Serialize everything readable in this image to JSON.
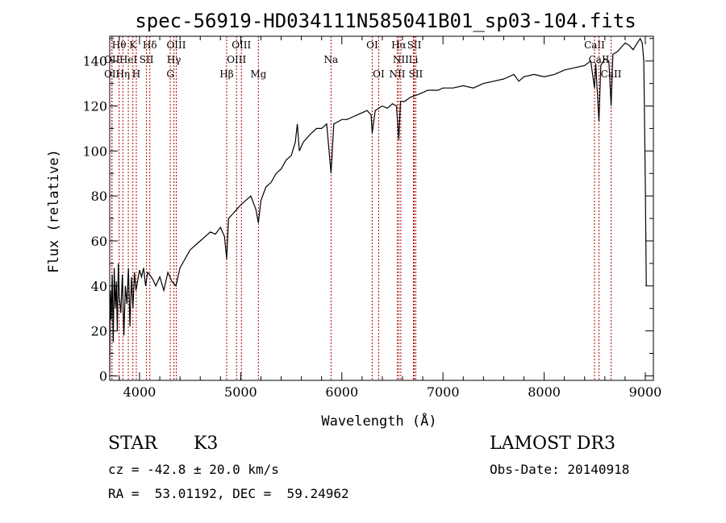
{
  "chart_data": {
    "type": "line",
    "title": "spec-56919-HD034111N585041B01_sp03-104.fits",
    "xlabel": "Wavelength (Å)",
    "ylabel": "Flux (relative)",
    "xlim": [
      3705,
      9080
    ],
    "ylim": [
      -2,
      151
    ],
    "xticks": [
      4000,
      5000,
      6000,
      7000,
      8000,
      9000
    ],
    "yticks": [
      0,
      20,
      40,
      60,
      80,
      100,
      120,
      140
    ],
    "line_color": "#000000",
    "marker_color": "#b00000",
    "lines": [
      {
        "label": "OII",
        "wl": 3727,
        "row": 3
      },
      {
        "label": "Hθ",
        "wl": 3798,
        "row": 1
      },
      {
        "label": "OII",
        "wl": 3727,
        "row": 2
      },
      {
        "label": "Hη",
        "wl": 3835,
        "row": 3
      },
      {
        "label": "HeI",
        "wl": 3889,
        "row": 2
      },
      {
        "label": "K",
        "wl": 3934,
        "row": 1
      },
      {
        "label": "H",
        "wl": 3968,
        "row": 3
      },
      {
        "label": "SII",
        "wl": 4069,
        "row": 2
      },
      {
        "label": "Hδ",
        "wl": 4102,
        "row": 1
      },
      {
        "label": "G",
        "wl": 4304,
        "row": 3
      },
      {
        "label": "Hγ",
        "wl": 4340,
        "row": 2
      },
      {
        "label": "OIII",
        "wl": 4363,
        "row": 1
      },
      {
        "label": "Hβ",
        "wl": 4861,
        "row": 3
      },
      {
        "label": "OIII",
        "wl": 4959,
        "row": 2
      },
      {
        "label": "OIII",
        "wl": 5007,
        "row": 1
      },
      {
        "label": "Mg",
        "wl": 5175,
        "row": 3
      },
      {
        "label": "Na",
        "wl": 5893,
        "row": 2
      },
      {
        "label": "OI",
        "wl": 6300,
        "row": 1
      },
      {
        "label": "OI",
        "wl": 6364,
        "row": 3
      },
      {
        "label": "NII",
        "wl": 6548,
        "row": 3
      },
      {
        "label": "Hα",
        "wl": 6563,
        "row": 1
      },
      {
        "label": "NII",
        "wl": 6583,
        "row": 2
      },
      {
        "label": "Li",
        "wl": 6708,
        "row": 2
      },
      {
        "label": "SII",
        "wl": 6716,
        "row": 1
      },
      {
        "label": "SII",
        "wl": 6731,
        "row": 3
      },
      {
        "label": "CaII",
        "wl": 8498,
        "row": 1
      },
      {
        "label": "CaII",
        "wl": 8542,
        "row": 2
      },
      {
        "label": "CaII",
        "wl": 8662,
        "row": 3
      }
    ],
    "x": [
      3705,
      3712,
      3720,
      3730,
      3740,
      3750,
      3760,
      3770,
      3780,
      3790,
      3800,
      3815,
      3830,
      3845,
      3860,
      3875,
      3890,
      3905,
      3920,
      3935,
      3950,
      3965,
      3980,
      4000,
      4020,
      4040,
      4060,
      4080,
      4100,
      4130,
      4160,
      4200,
      4240,
      4280,
      4320,
      4360,
      4400,
      4450,
      4500,
      4550,
      4600,
      4650,
      4700,
      4750,
      4800,
      4840,
      4861,
      4880,
      4920,
      4960,
      5000,
      5050,
      5100,
      5150,
      5175,
      5200,
      5250,
      5300,
      5350,
      5400,
      5450,
      5500,
      5540,
      5560,
      5580,
      5620,
      5660,
      5700,
      5750,
      5800,
      5850,
      5893,
      5920,
      5960,
      6000,
      6050,
      6100,
      6150,
      6200,
      6250,
      6290,
      6300,
      6330,
      6400,
      6450,
      6500,
      6540,
      6563,
      6580,
      6620,
      6680,
      6750,
      6800,
      6850,
      6900,
      6950,
      7000,
      7100,
      7200,
      7300,
      7400,
      7500,
      7600,
      7700,
      7750,
      7800,
      7900,
      8000,
      8100,
      8200,
      8300,
      8400,
      8460,
      8498,
      8510,
      8542,
      8560,
      8600,
      8640,
      8662,
      8680,
      8720,
      8760,
      8800,
      8840,
      8880,
      8920,
      8950,
      8970,
      8985,
      9000,
      9010
    ],
    "y": [
      2,
      38,
      25,
      45,
      15,
      48,
      30,
      42,
      20,
      50,
      35,
      28,
      45,
      18,
      40,
      32,
      48,
      22,
      44,
      30,
      46,
      38,
      42,
      47,
      44,
      48,
      40,
      46,
      45,
      43,
      40,
      44,
      38,
      46,
      42,
      40,
      48,
      52,
      56,
      58,
      60,
      62,
      64,
      63,
      66,
      62,
      52,
      70,
      72,
      74,
      76,
      78,
      80,
      74,
      68,
      78,
      84,
      86,
      90,
      92,
      96,
      98,
      104,
      112,
      100,
      104,
      106,
      108,
      110,
      110,
      112,
      90,
      112,
      113,
      114,
      114,
      115,
      116,
      117,
      118,
      116,
      108,
      118,
      120,
      119,
      121,
      120,
      105,
      122,
      122,
      124,
      125,
      126,
      127,
      127,
      127,
      128,
      128,
      129,
      128,
      130,
      131,
      132,
      134,
      131,
      133,
      134,
      133,
      134,
      136,
      137,
      138,
      140,
      128,
      139,
      113,
      138,
      141,
      140,
      120,
      143,
      144,
      146,
      148,
      147,
      145,
      148,
      150,
      148,
      140,
      85,
      40
    ]
  },
  "info": {
    "object_type": "STAR",
    "subclass": "K3",
    "cz": "cz = -42.8 ± 20.0 km/s",
    "coords": "RA =  53.01192, DEC =  59.24962",
    "survey": "LAMOST DR3",
    "obs_date": "Obs-Date: 20140918"
  }
}
